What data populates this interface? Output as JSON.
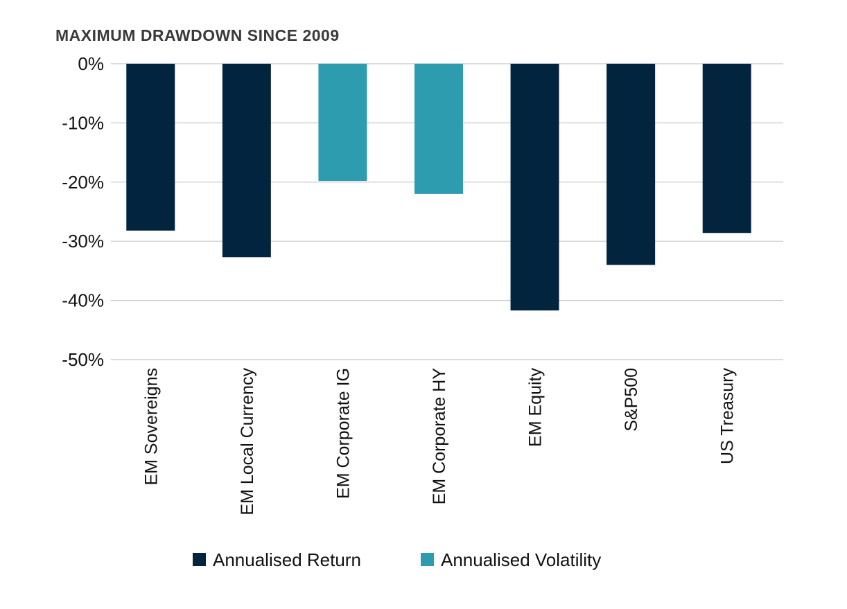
{
  "chart_data": {
    "type": "bar",
    "title": "MAXIMUM DRAWDOWN SINCE 2009",
    "xlabel": "",
    "ylabel": "",
    "ylim": [
      -50,
      0
    ],
    "yticks": [
      0,
      -10,
      -20,
      -30,
      -40,
      -50
    ],
    "ytick_labels": [
      "0%",
      "-10%",
      "-20%",
      "-30%",
      "-40%",
      "-50%"
    ],
    "grid": true,
    "categories": [
      "EM Sovereigns",
      "EM Local Currency",
      "EM Corporate IG",
      "EM Corporate HY",
      "EM Equity",
      "S&P500",
      "US Treasury"
    ],
    "values": [
      -28.2,
      -32.7,
      -19.8,
      -22.0,
      -41.7,
      -34.0,
      -28.6
    ],
    "bar_series": [
      0,
      0,
      1,
      1,
      0,
      0,
      0
    ],
    "series": [
      {
        "name": "Annualised Return",
        "color": "#03243f"
      },
      {
        "name": "Annualised Volatility",
        "color": "#2e9caf"
      }
    ],
    "legend": "bottom-center"
  }
}
